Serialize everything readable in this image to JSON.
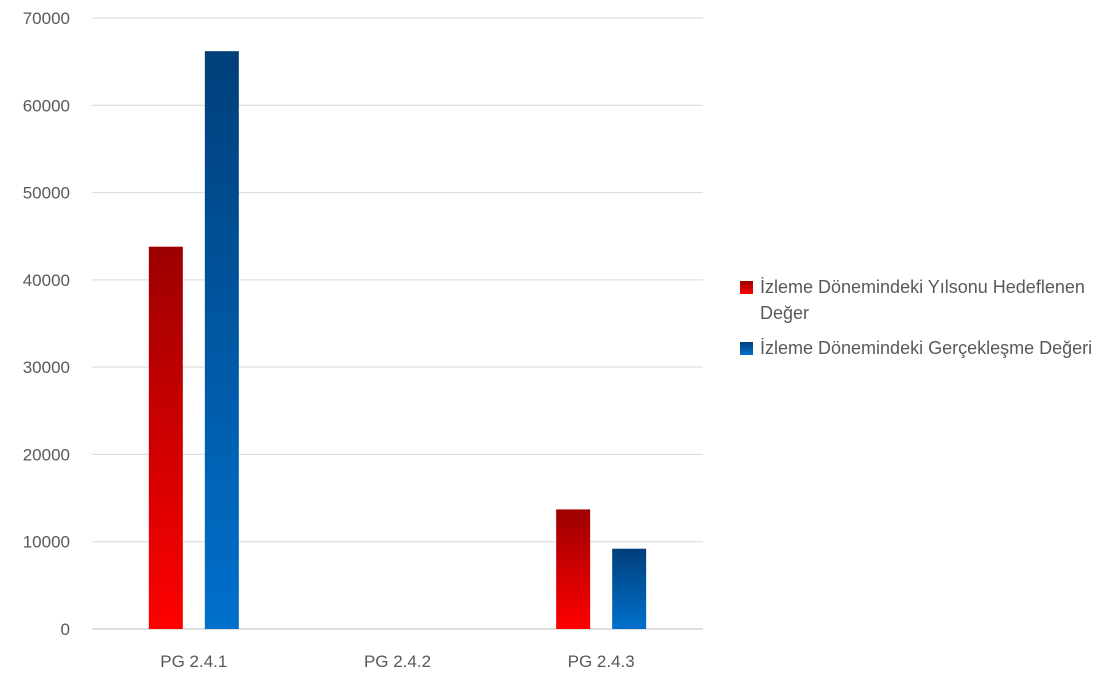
{
  "chart_data": {
    "type": "bar",
    "categories": [
      "PG 2.4.1",
      "PG 2.4.2",
      "PG 2.4.3"
    ],
    "series": [
      {
        "name": "İzleme  Dönemindeki Yılsonu Hedeflenen Değer",
        "values": [
          43800,
          0,
          13700
        ],
        "color_top": "#9c0000",
        "color_bottom": "#ff0000"
      },
      {
        "name": "İzleme  Dönemindeki Gerçekleşme Değeri",
        "values": [
          66200,
          0,
          9200
        ],
        "color_top": "#003f7a",
        "color_bottom": "#0070cc"
      }
    ],
    "ylim": [
      0,
      70000
    ],
    "yticks": [
      "0",
      "10000",
      "20000",
      "30000",
      "40000",
      "50000",
      "60000",
      "70000"
    ],
    "grid": true,
    "legend_position": "right",
    "title": "",
    "xlabel": "",
    "ylabel": ""
  }
}
